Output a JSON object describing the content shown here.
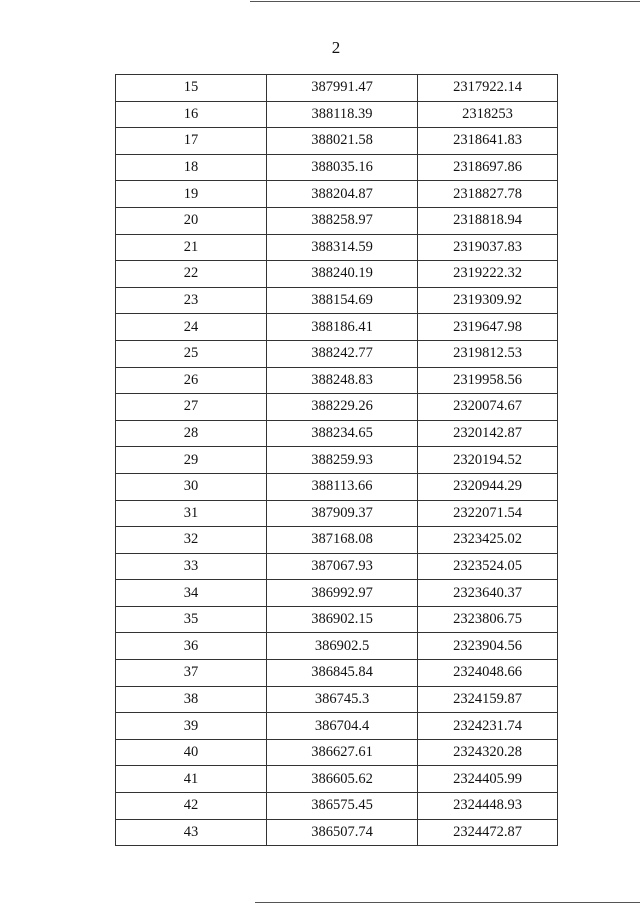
{
  "page_number": "2",
  "table": {
    "rows": [
      [
        "15",
        "387991.47",
        "2317922.14"
      ],
      [
        "16",
        "388118.39",
        "2318253"
      ],
      [
        "17",
        "388021.58",
        "2318641.83"
      ],
      [
        "18",
        "388035.16",
        "2318697.86"
      ],
      [
        "19",
        "388204.87",
        "2318827.78"
      ],
      [
        "20",
        "388258.97",
        "2318818.94"
      ],
      [
        "21",
        "388314.59",
        "2319037.83"
      ],
      [
        "22",
        "388240.19",
        "2319222.32"
      ],
      [
        "23",
        "388154.69",
        "2319309.92"
      ],
      [
        "24",
        "388186.41",
        "2319647.98"
      ],
      [
        "25",
        "388242.77",
        "2319812.53"
      ],
      [
        "26",
        "388248.83",
        "2319958.56"
      ],
      [
        "27",
        "388229.26",
        "2320074.67"
      ],
      [
        "28",
        "388234.65",
        "2320142.87"
      ],
      [
        "29",
        "388259.93",
        "2320194.52"
      ],
      [
        "30",
        "388113.66",
        "2320944.29"
      ],
      [
        "31",
        "387909.37",
        "2322071.54"
      ],
      [
        "32",
        "387168.08",
        "2323425.02"
      ],
      [
        "33",
        "387067.93",
        "2323524.05"
      ],
      [
        "34",
        "386992.97",
        "2323640.37"
      ],
      [
        "35",
        "386902.15",
        "2323806.75"
      ],
      [
        "36",
        "386902.5",
        "2323904.56"
      ],
      [
        "37",
        "386845.84",
        "2324048.66"
      ],
      [
        "38",
        "386745.3",
        "2324159.87"
      ],
      [
        "39",
        "386704.4",
        "2324231.74"
      ],
      [
        "40",
        "386627.61",
        "2324320.28"
      ],
      [
        "41",
        "386605.62",
        "2324405.99"
      ],
      [
        "42",
        "386575.45",
        "2324448.93"
      ],
      [
        "43",
        "386507.74",
        "2324472.87"
      ]
    ]
  }
}
